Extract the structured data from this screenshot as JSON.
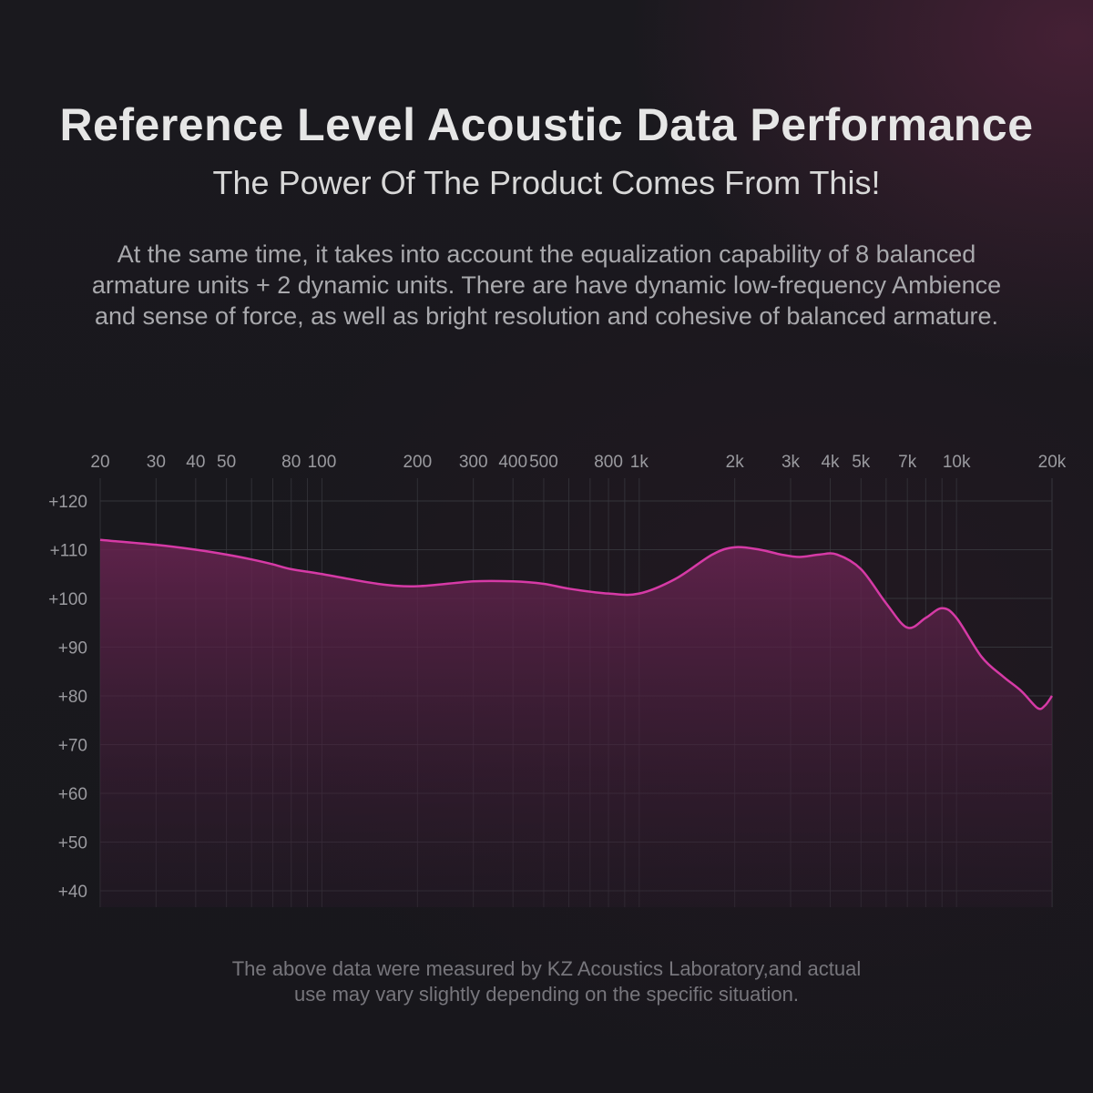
{
  "heading": {
    "title": "Reference Level Acoustic Data Performance",
    "subtitle": "The Power Of The Product Comes From This!",
    "description_lines": [
      "At the same time, it takes into account the equalization capability of 8 balanced",
      "armature units + 2 dynamic units. There are have dynamic low-frequency Ambience",
      "and sense of force, as well as bright resolution and cohesive of balanced armature."
    ]
  },
  "footnote_lines": [
    "The above data were measured by KZ Acoustics Laboratory,and actual",
    "use may vary slightly depending on the specific situation."
  ],
  "colors": {
    "curve": "#d63aa6",
    "fill_top": "#6a2452",
    "fill_bottom": "#2a1a2a",
    "grid": "#3a3a40",
    "tick_text": "#9a9a9f"
  },
  "chart_data": {
    "type": "area",
    "xscale": "log",
    "xlim": [
      20,
      20000
    ],
    "ylim": [
      40,
      120
    ],
    "grid": true,
    "x_tick_labels": [
      {
        "value": 20,
        "label": "20"
      },
      {
        "value": 30,
        "label": "30"
      },
      {
        "value": 40,
        "label": "40"
      },
      {
        "value": 50,
        "label": "50"
      },
      {
        "value": 80,
        "label": "80"
      },
      {
        "value": 100,
        "label": "100"
      },
      {
        "value": 200,
        "label": "200"
      },
      {
        "value": 300,
        "label": "300"
      },
      {
        "value": 400,
        "label": "400"
      },
      {
        "value": 500,
        "label": "500"
      },
      {
        "value": 800,
        "label": "800"
      },
      {
        "value": 1000,
        "label": "1k"
      },
      {
        "value": 2000,
        "label": "2k"
      },
      {
        "value": 3000,
        "label": "3k"
      },
      {
        "value": 4000,
        "label": "4k"
      },
      {
        "value": 5000,
        "label": "5k"
      },
      {
        "value": 7000,
        "label": "7k"
      },
      {
        "value": 10000,
        "label": "10k"
      },
      {
        "value": 20000,
        "label": "20k"
      }
    ],
    "y_tick_labels": [
      {
        "value": 120,
        "label": "+120"
      },
      {
        "value": 110,
        "label": "+110"
      },
      {
        "value": 100,
        "label": "+100"
      },
      {
        "value": 90,
        "label": "+90"
      },
      {
        "value": 80,
        "label": "+80"
      },
      {
        "value": 70,
        "label": "+70"
      },
      {
        "value": 60,
        "label": "+60"
      },
      {
        "value": 50,
        "label": "+50"
      },
      {
        "value": 40,
        "label": "+40"
      }
    ],
    "x": [
      20,
      30,
      40,
      50,
      60,
      70,
      80,
      100,
      150,
      200,
      300,
      400,
      500,
      600,
      800,
      1000,
      1300,
      1700,
      2000,
      2400,
      2800,
      3200,
      3700,
      4200,
      5000,
      6000,
      7000,
      8000,
      9000,
      10000,
      12000,
      14000,
      16000,
      18000,
      19000,
      20000
    ],
    "y": [
      112,
      111,
      110,
      109,
      108,
      107,
      106,
      105,
      103,
      102.5,
      103.5,
      103.5,
      103,
      102,
      101,
      101,
      104,
      109,
      110.5,
      110,
      109,
      108.5,
      109,
      109,
      106,
      99,
      94,
      96,
      98,
      96,
      88,
      84,
      81,
      77.5,
      78,
      80
    ]
  }
}
